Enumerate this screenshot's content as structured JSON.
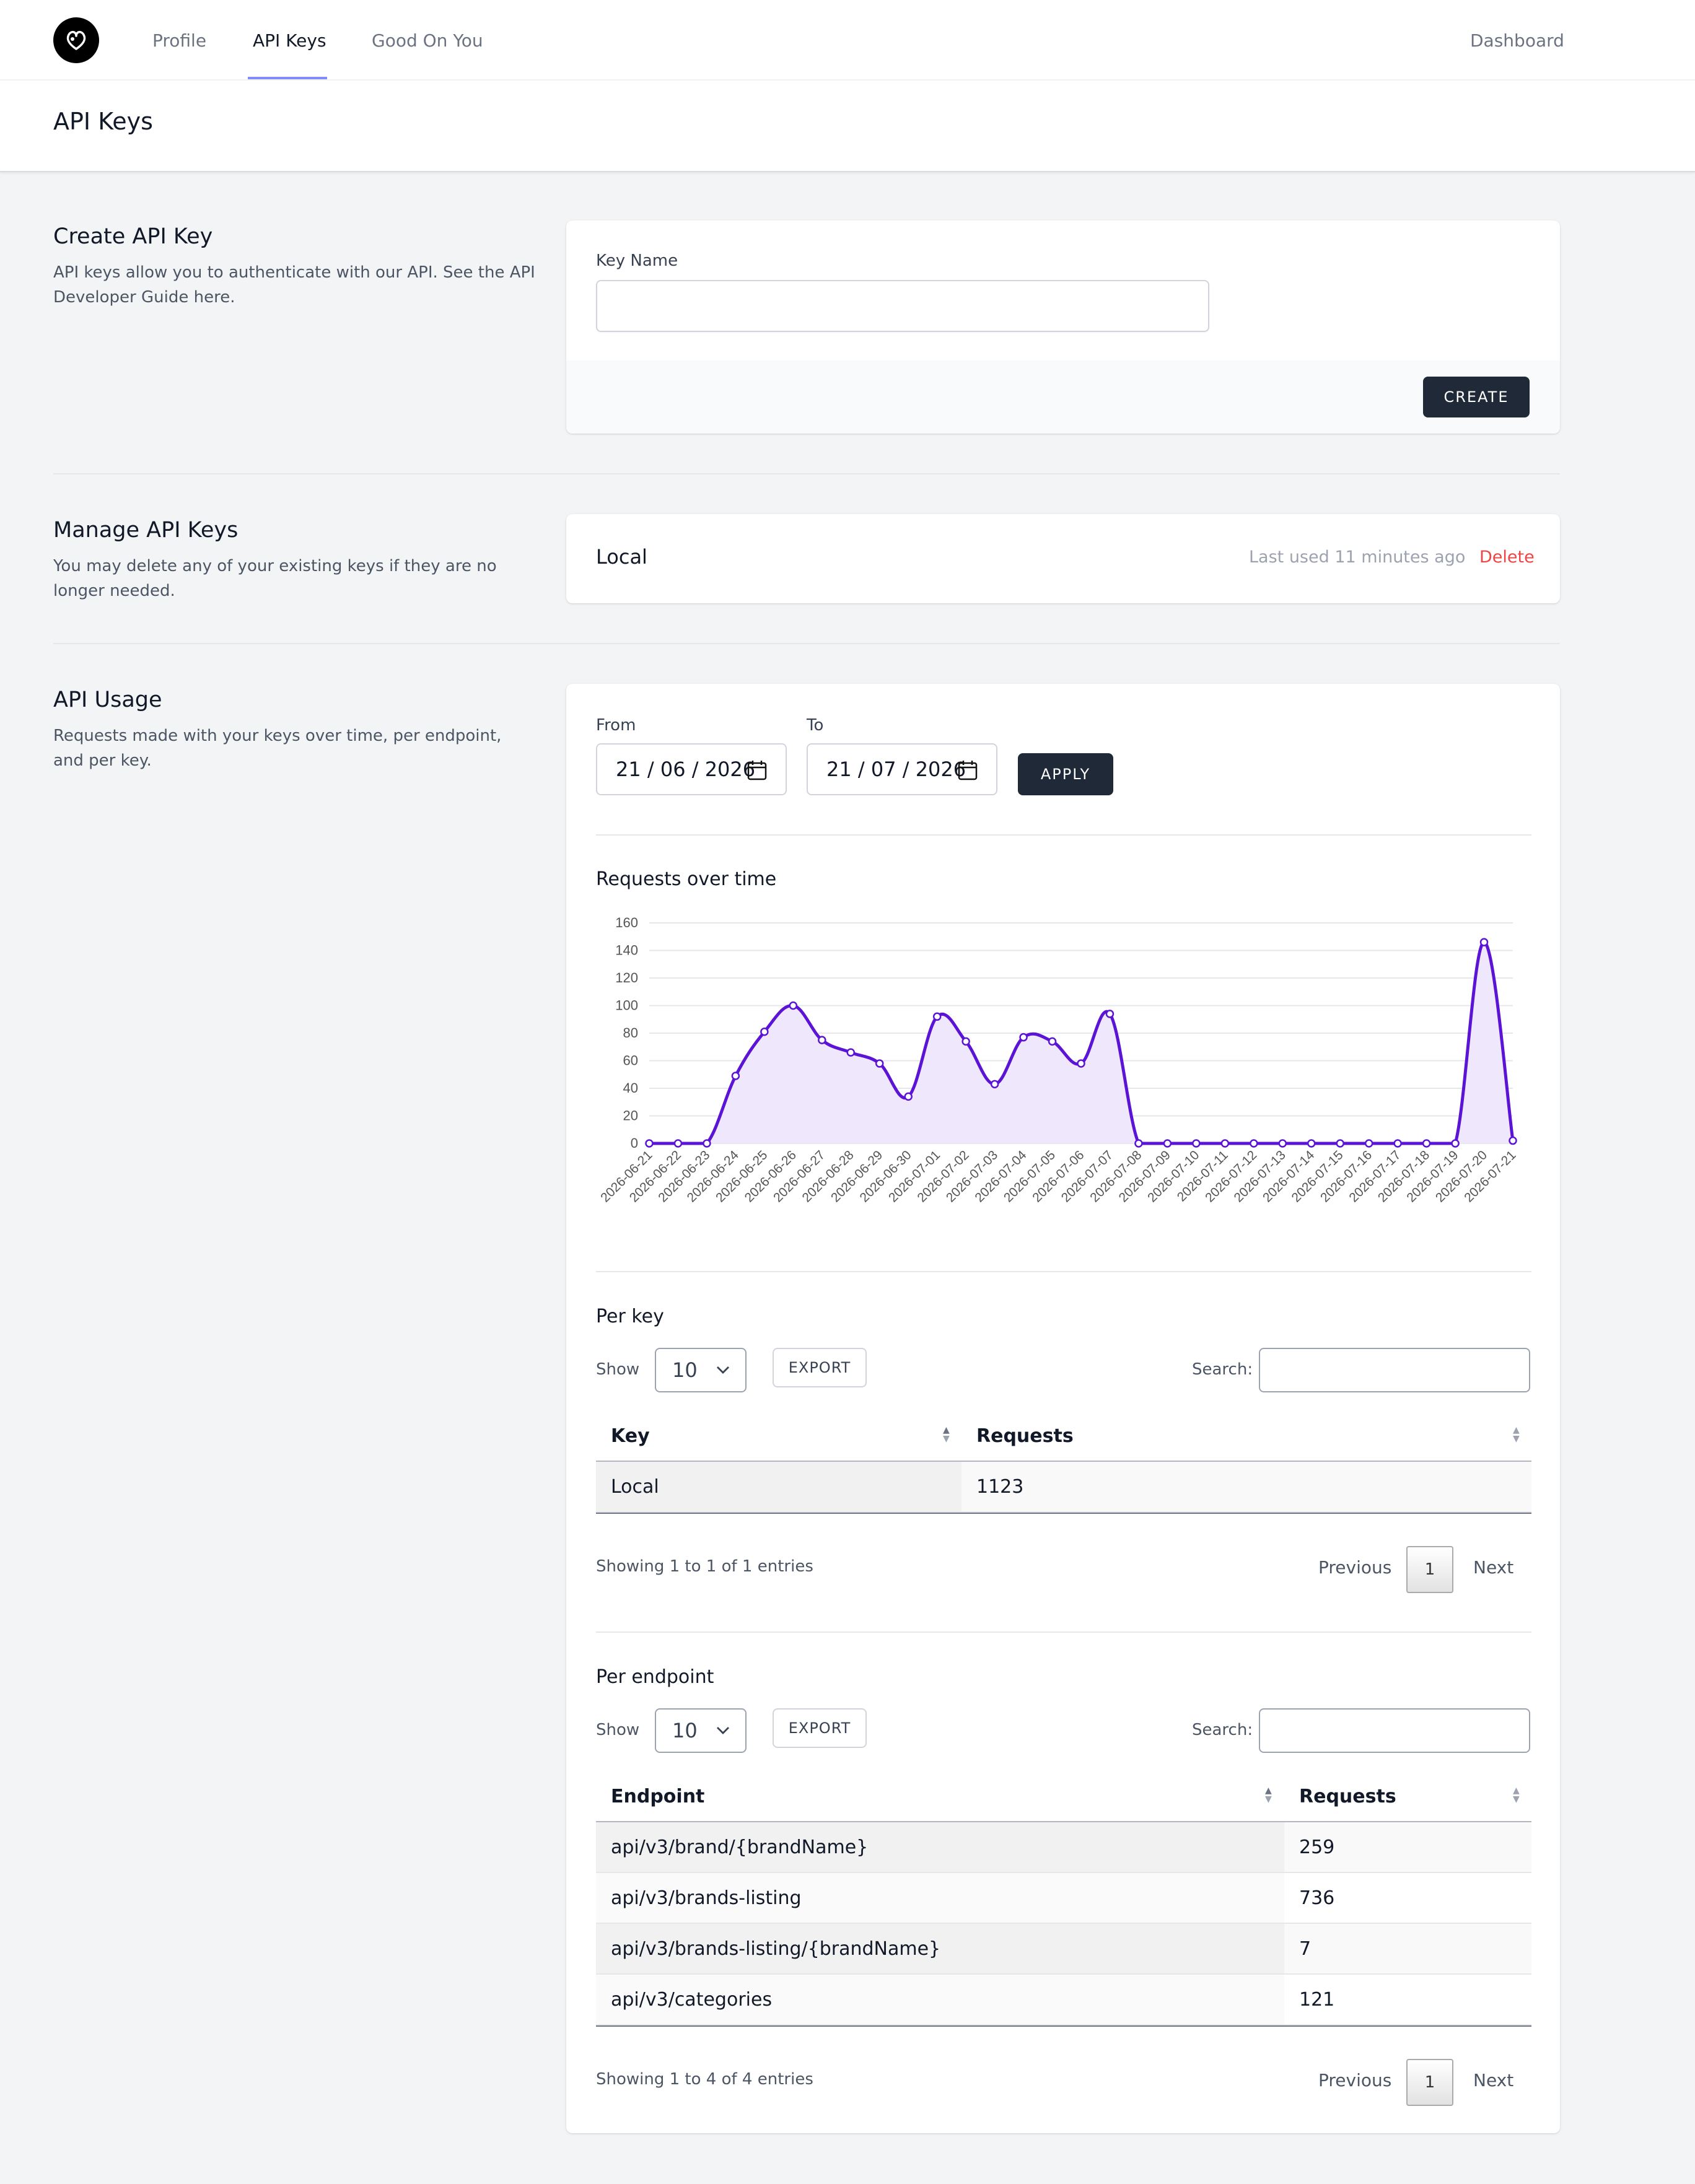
{
  "nav": {
    "items": [
      {
        "label": "Profile"
      },
      {
        "label": "API Keys"
      },
      {
        "label": "Good On You"
      }
    ],
    "right_link": "Dashboard"
  },
  "page": {
    "title": "API Keys"
  },
  "create": {
    "title": "Create API Key",
    "description": "API keys allow you to authenticate with our API. See the API Developer Guide here.",
    "field_label": "Key Name",
    "field_value": "",
    "button": "CREATE"
  },
  "manage": {
    "title": "Manage API Keys",
    "description": "You may delete any of your existing keys if they are no longer needed.",
    "key_name": "Local",
    "last_used": "Last used 11 minutes ago",
    "delete_label": "Delete"
  },
  "usage": {
    "title": "API Usage",
    "description": "Requests made with your keys over time, per endpoint, and per key.",
    "from_label": "From",
    "from_value": "21 / 06 / 2026",
    "to_label": "To",
    "to_value": "21 / 07 / 2026",
    "apply_button": "APPLY",
    "chart_title": "Requests over time"
  },
  "chart_data": {
    "type": "area",
    "title": "Requests over time",
    "xlabel": "",
    "ylabel": "",
    "ylim": [
      0,
      160
    ],
    "yticks": [
      0,
      20,
      40,
      60,
      80,
      100,
      120,
      140,
      160
    ],
    "grid": true,
    "color": "#5b13d6",
    "fill": "#efe7fc",
    "x": [
      "2026-06-21",
      "2026-06-22",
      "2026-06-23",
      "2026-06-24",
      "2026-06-25",
      "2026-06-26",
      "2026-06-27",
      "2026-06-28",
      "2026-06-29",
      "2026-06-30",
      "2026-07-01",
      "2026-07-02",
      "2026-07-03",
      "2026-07-04",
      "2026-07-05",
      "2026-07-06",
      "2026-07-07",
      "2026-07-08",
      "2026-07-09",
      "2026-07-10",
      "2026-07-11",
      "2026-07-12",
      "2026-07-13",
      "2026-07-14",
      "2026-07-15",
      "2026-07-16",
      "2026-07-17",
      "2026-07-18",
      "2026-07-19",
      "2026-07-20",
      "2026-07-21"
    ],
    "values": [
      0,
      0,
      0,
      49,
      81,
      100,
      75,
      66,
      58,
      34,
      92,
      74,
      43,
      77,
      74,
      58,
      94,
      0,
      0,
      0,
      0,
      0,
      0,
      0,
      0,
      0,
      0,
      0,
      0,
      146,
      2
    ]
  },
  "per_key": {
    "title": "Per key",
    "show_label": "Show",
    "page_size": "10",
    "export_label": "EXPORT",
    "search_label": "Search:",
    "search_value": "",
    "columns": [
      "Key",
      "Requests"
    ],
    "rows": [
      {
        "key": "Local",
        "requests": "1123"
      }
    ],
    "info": "Showing 1 to 1 of 1 entries",
    "prev": "Previous",
    "page": "1",
    "next": "Next"
  },
  "per_endpoint": {
    "title": "Per endpoint",
    "show_label": "Show",
    "page_size": "10",
    "export_label": "EXPORT",
    "search_label": "Search:",
    "search_value": "",
    "columns": [
      "Endpoint",
      "Requests"
    ],
    "rows": [
      {
        "endpoint": "api/v3/brand/{brandName}",
        "requests": "259"
      },
      {
        "endpoint": "api/v3/brands-listing",
        "requests": "736"
      },
      {
        "endpoint": "api/v3/brands-listing/{brandName}",
        "requests": "7"
      },
      {
        "endpoint": "api/v3/categories",
        "requests": "121"
      }
    ],
    "info": "Showing 1 to 4 of 4 entries",
    "prev": "Previous",
    "page": "1",
    "next": "Next"
  }
}
